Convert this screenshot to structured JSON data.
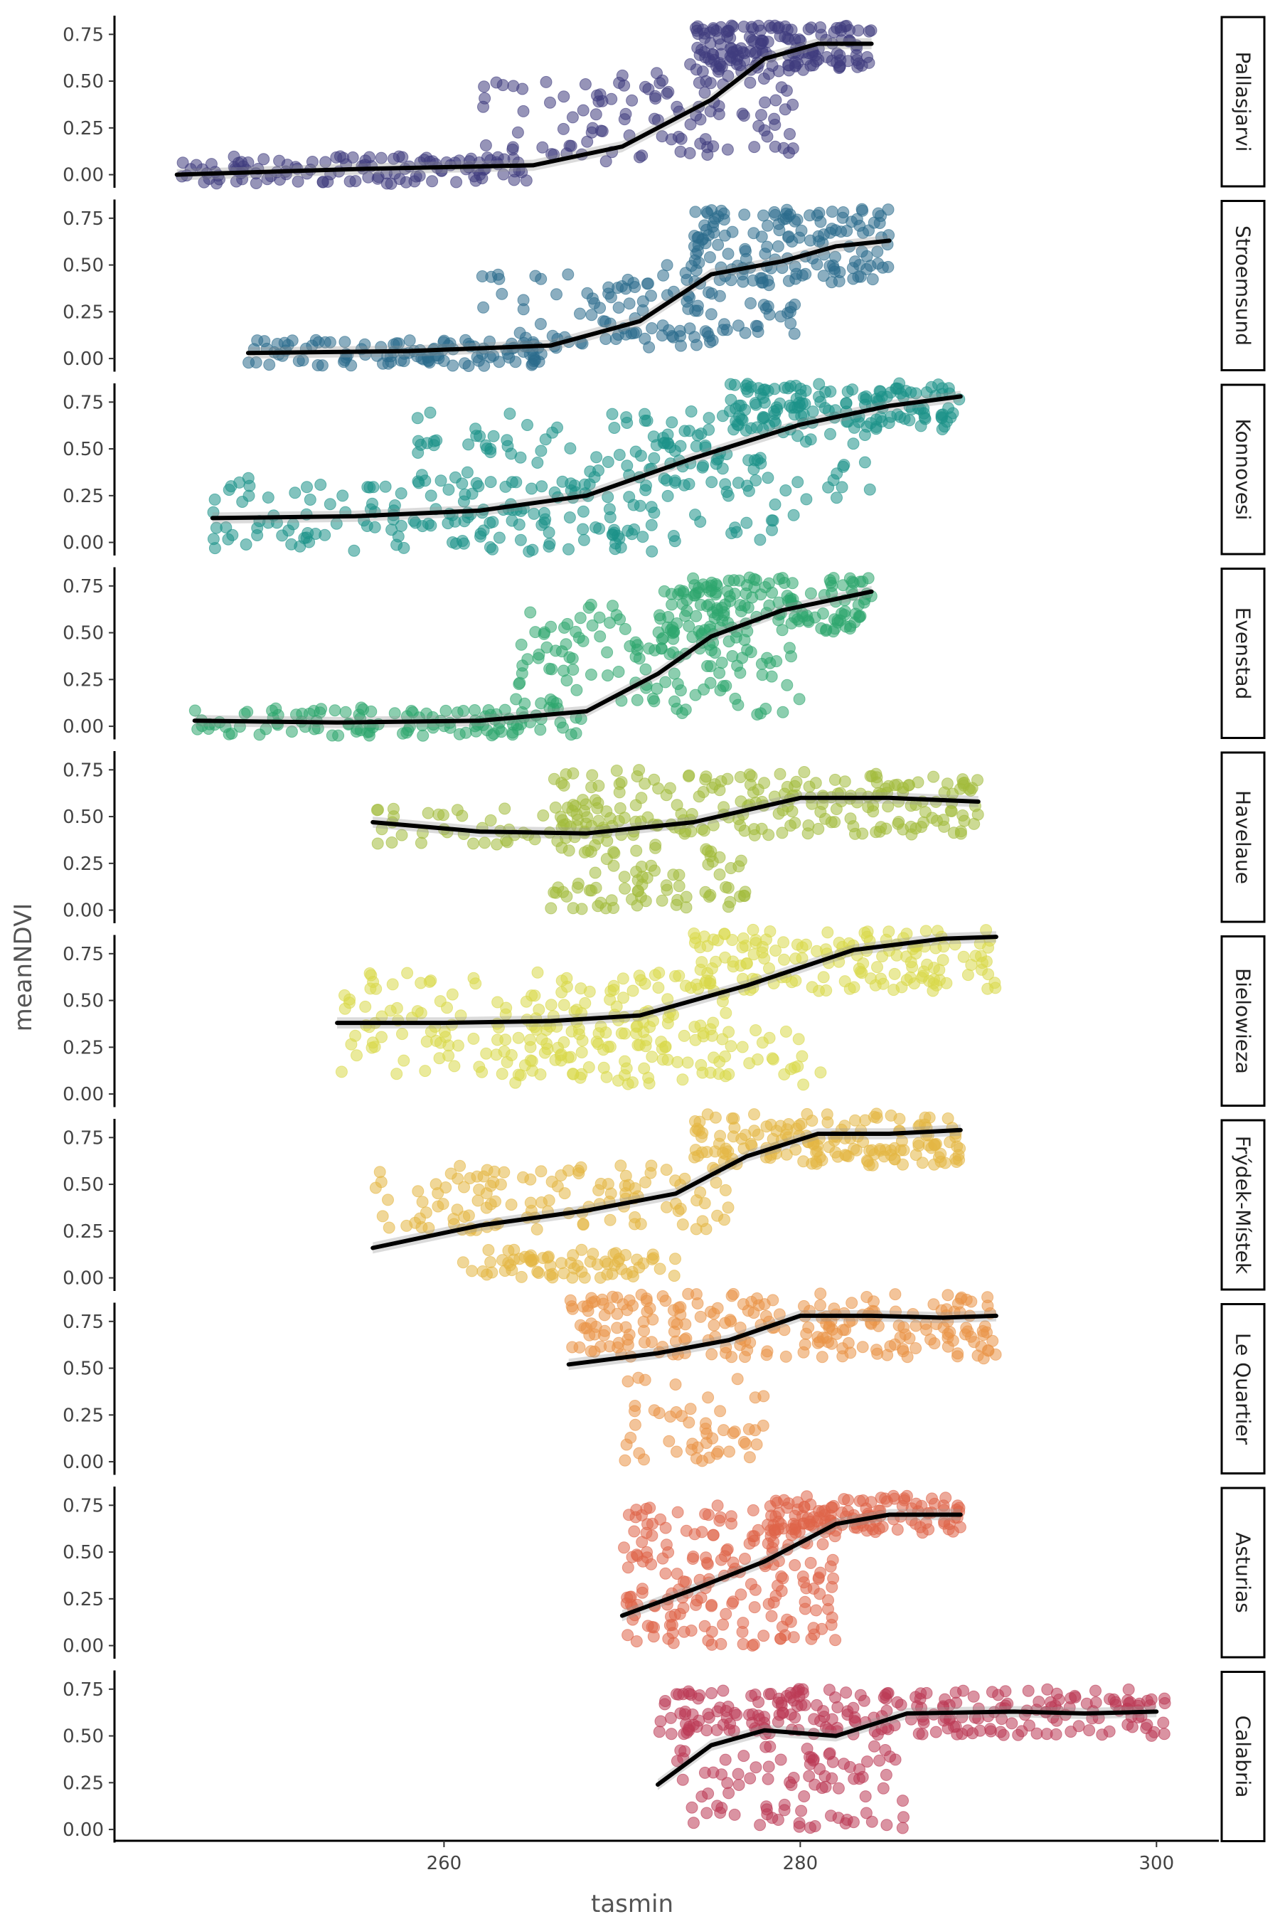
{
  "chart_data": {
    "type": "scatter",
    "xlabel": "tasmin",
    "ylabel": "meanNDVI",
    "xlim": [
      241.5,
      303.5
    ],
    "ylim": [
      -0.07,
      0.85
    ],
    "x_ticks": [
      260,
      280,
      300
    ],
    "y_ticks": [
      0.0,
      0.25,
      0.5,
      0.75
    ],
    "x_tick_labels": [
      "260",
      "280",
      "300"
    ],
    "y_tick_labels": [
      "0.00",
      "0.25",
      "0.50",
      "0.75"
    ],
    "grid": false,
    "legend": "none",
    "facet_layout": "vertical strips, facet label on right",
    "facets": [
      {
        "name": "Pallasjarvi",
        "color": "#3f3c7e",
        "x_range": [
          245,
          284
        ],
        "trend": [
          [
            245,
            0.0
          ],
          [
            255,
            0.03
          ],
          [
            265,
            0.05
          ],
          [
            270,
            0.15
          ],
          [
            275,
            0.4
          ],
          [
            278,
            0.62
          ],
          [
            281,
            0.7
          ],
          [
            284,
            0.7
          ]
        ],
        "clusters": [
          {
            "x": [
              245,
              265
            ],
            "y": [
              -0.05,
              0.1
            ],
            "n": 120
          },
          {
            "x": [
              262,
              276
            ],
            "y": [
              0.05,
              0.5
            ],
            "n": 60
          },
          {
            "x": [
              274,
              284
            ],
            "y": [
              0.55,
              0.8
            ],
            "n": 160
          },
          {
            "x": [
              268,
              280
            ],
            "y": [
              0.1,
              0.6
            ],
            "n": 60
          }
        ]
      },
      {
        "name": "Stroemsund",
        "color": "#2b6c8c",
        "x_range": [
          249,
          285
        ],
        "trend": [
          [
            249,
            0.03
          ],
          [
            258,
            0.04
          ],
          [
            266,
            0.07
          ],
          [
            271,
            0.2
          ],
          [
            275,
            0.45
          ],
          [
            279,
            0.52
          ],
          [
            282,
            0.6
          ],
          [
            285,
            0.63
          ]
        ],
        "clusters": [
          {
            "x": [
              249,
              266
            ],
            "y": [
              -0.04,
              0.1
            ],
            "n": 110
          },
          {
            "x": [
              262,
              276
            ],
            "y": [
              0.05,
              0.45
            ],
            "n": 70
          },
          {
            "x": [
              274,
              285
            ],
            "y": [
              0.4,
              0.8
            ],
            "n": 150
          },
          {
            "x": [
              270,
              280
            ],
            "y": [
              0.1,
              0.5
            ],
            "n": 50
          }
        ]
      },
      {
        "name": "Konnovesi",
        "color": "#1c9288",
        "x_range": [
          247,
          289
        ],
        "trend": [
          [
            247,
            0.13
          ],
          [
            255,
            0.14
          ],
          [
            262,
            0.17
          ],
          [
            268,
            0.25
          ],
          [
            274,
            0.45
          ],
          [
            280,
            0.63
          ],
          [
            285,
            0.73
          ],
          [
            289,
            0.78
          ]
        ],
        "clusters": [
          {
            "x": [
              247,
              272
            ],
            "y": [
              -0.05,
              0.35
            ],
            "n": 170
          },
          {
            "x": [
              258,
              278
            ],
            "y": [
              0.3,
              0.7
            ],
            "n": 100
          },
          {
            "x": [
              276,
              289
            ],
            "y": [
              0.6,
              0.85
            ],
            "n": 150
          },
          {
            "x": [
              272,
              284
            ],
            "y": [
              0.0,
              0.6
            ],
            "n": 50
          }
        ]
      },
      {
        "name": "Evenstad",
        "color": "#2ea66e",
        "x_range": [
          246,
          284
        ],
        "trend": [
          [
            246,
            0.03
          ],
          [
            254,
            0.02
          ],
          [
            262,
            0.03
          ],
          [
            268,
            0.08
          ],
          [
            272,
            0.28
          ],
          [
            275,
            0.48
          ],
          [
            279,
            0.62
          ],
          [
            284,
            0.72
          ]
        ],
        "clusters": [
          {
            "x": [
              246,
              268
            ],
            "y": [
              -0.05,
              0.1
            ],
            "n": 120
          },
          {
            "x": [
              264,
              276
            ],
            "y": [
              0.1,
              0.65
            ],
            "n": 90
          },
          {
            "x": [
              272,
              284
            ],
            "y": [
              0.5,
              0.8
            ],
            "n": 150
          },
          {
            "x": [
              270,
              280
            ],
            "y": [
              0.05,
              0.5
            ],
            "n": 50
          }
        ]
      },
      {
        "name": "Havelaue",
        "color": "#a2bb3c",
        "x_range": [
          256,
          290
        ],
        "trend": [
          [
            256,
            0.47
          ],
          [
            262,
            0.42
          ],
          [
            268,
            0.41
          ],
          [
            274,
            0.47
          ],
          [
            280,
            0.6
          ],
          [
            285,
            0.6
          ],
          [
            290,
            0.58
          ]
        ],
        "clusters": [
          {
            "x": [
              256,
              270
            ],
            "y": [
              0.35,
              0.55
            ],
            "n": 50
          },
          {
            "x": [
              266,
              290
            ],
            "y": [
              0.4,
              0.75
            ],
            "n": 220
          },
          {
            "x": [
              266,
              277
            ],
            "y": [
              0.0,
              0.35
            ],
            "n": 80
          }
        ]
      },
      {
        "name": "Bielowieza",
        "color": "#d8d84a",
        "x_range": [
          254,
          291
        ],
        "trend": [
          [
            254,
            0.38
          ],
          [
            260,
            0.38
          ],
          [
            266,
            0.39
          ],
          [
            271,
            0.42
          ],
          [
            277,
            0.58
          ],
          [
            283,
            0.77
          ],
          [
            288,
            0.83
          ],
          [
            291,
            0.84
          ]
        ],
        "clusters": [
          {
            "x": [
              254,
              276
            ],
            "y": [
              0.1,
              0.65
            ],
            "n": 190
          },
          {
            "x": [
              274,
              291
            ],
            "y": [
              0.55,
              0.88
            ],
            "n": 150
          },
          {
            "x": [
              264,
              282
            ],
            "y": [
              0.05,
              0.35
            ],
            "n": 60
          }
        ]
      },
      {
        "name": "Frýdek-Místek",
        "color": "#e4b744",
        "x_range": [
          256,
          289
        ],
        "trend": [
          [
            256,
            0.16
          ],
          [
            262,
            0.28
          ],
          [
            268,
            0.36
          ],
          [
            273,
            0.45
          ],
          [
            277,
            0.65
          ],
          [
            281,
            0.77
          ],
          [
            285,
            0.77
          ],
          [
            289,
            0.79
          ]
        ],
        "clusters": [
          {
            "x": [
              256,
              276
            ],
            "y": [
              0.25,
              0.6
            ],
            "n": 120
          },
          {
            "x": [
              274,
              289
            ],
            "y": [
              0.6,
              0.88
            ],
            "n": 160
          },
          {
            "x": [
              261,
              273
            ],
            "y": [
              0.0,
              0.15
            ],
            "n": 70
          }
        ]
      },
      {
        "name": "Le Quartier",
        "color": "#ea9447",
        "x_range": [
          267,
          291
        ],
        "trend": [
          [
            267,
            0.52
          ],
          [
            272,
            0.58
          ],
          [
            276,
            0.65
          ],
          [
            280,
            0.78
          ],
          [
            284,
            0.78
          ],
          [
            288,
            0.77
          ],
          [
            291,
            0.78
          ]
        ],
        "clusters": [
          {
            "x": [
              267,
              291
            ],
            "y": [
              0.55,
              0.9
            ],
            "n": 230
          },
          {
            "x": [
              270,
              278
            ],
            "y": [
              0.0,
              0.45
            ],
            "n": 50
          }
        ]
      },
      {
        "name": "Asturias",
        "color": "#df6449",
        "x_range": [
          270,
          289
        ],
        "trend": [
          [
            270,
            0.16
          ],
          [
            274,
            0.3
          ],
          [
            278,
            0.45
          ],
          [
            282,
            0.65
          ],
          [
            285,
            0.7
          ],
          [
            289,
            0.7
          ]
        ],
        "clusters": [
          {
            "x": [
              270,
              282
            ],
            "y": [
              0.0,
              0.75
            ],
            "n": 200
          },
          {
            "x": [
              278,
              289
            ],
            "y": [
              0.6,
              0.8
            ],
            "n": 120
          }
        ]
      },
      {
        "name": "Calabria",
        "color": "#bb3b55",
        "x_range": [
          272,
          300.5
        ],
        "trend": [
          [
            272,
            0.24
          ],
          [
            275,
            0.45
          ],
          [
            278,
            0.53
          ],
          [
            282,
            0.5
          ],
          [
            286,
            0.62
          ],
          [
            292,
            0.63
          ],
          [
            296,
            0.62
          ],
          [
            300,
            0.63
          ]
        ],
        "clusters": [
          {
            "x": [
              272,
              300.5
            ],
            "y": [
              0.5,
              0.75
            ],
            "n": 250
          },
          {
            "x": [
              273,
              286
            ],
            "y": [
              0.0,
              0.45
            ],
            "n": 90
          }
        ]
      }
    ]
  }
}
